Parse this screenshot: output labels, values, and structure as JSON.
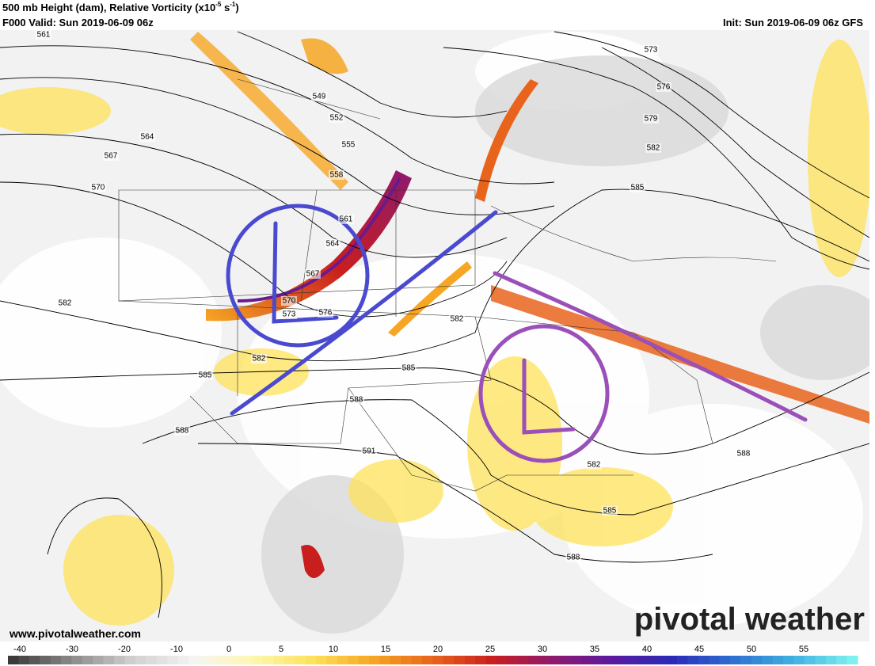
{
  "header": {
    "title_parts": [
      "500 mb Height (dam), Relative Vorticity (x10",
      "-5",
      " s",
      "-1",
      ")"
    ],
    "valid": "F000 Valid: Sun 2019-06-09 06z",
    "init": "Init: Sun 2019-06-09 06z GFS"
  },
  "contour_labels": [
    561,
    549,
    552,
    555,
    558,
    564,
    567,
    570,
    561,
    564,
    567,
    570,
    573,
    576,
    573,
    576,
    579,
    582,
    585,
    582,
    582,
    582,
    585,
    585,
    588,
    588,
    591,
    582,
    585,
    588,
    588
  ],
  "colorbar": {
    "ticks": [
      -40,
      -30,
      -20,
      -10,
      0,
      5,
      10,
      15,
      20,
      25,
      30,
      35,
      40,
      45,
      50,
      55
    ],
    "stops": [
      "#3a3a3a",
      "#8c8c8c",
      "#d0d0d0",
      "#f4f4f4",
      "#fff7b0",
      "#fde25a",
      "#f6a623",
      "#e8641c",
      "#c81e1e",
      "#8e1a6e",
      "#5a1aa0",
      "#2a2ab8",
      "#2f6fd0",
      "#3fb0e0",
      "#7ff0f0"
    ]
  },
  "website": "www.pivotalweather.com",
  "watermark": "pivotal weather"
}
